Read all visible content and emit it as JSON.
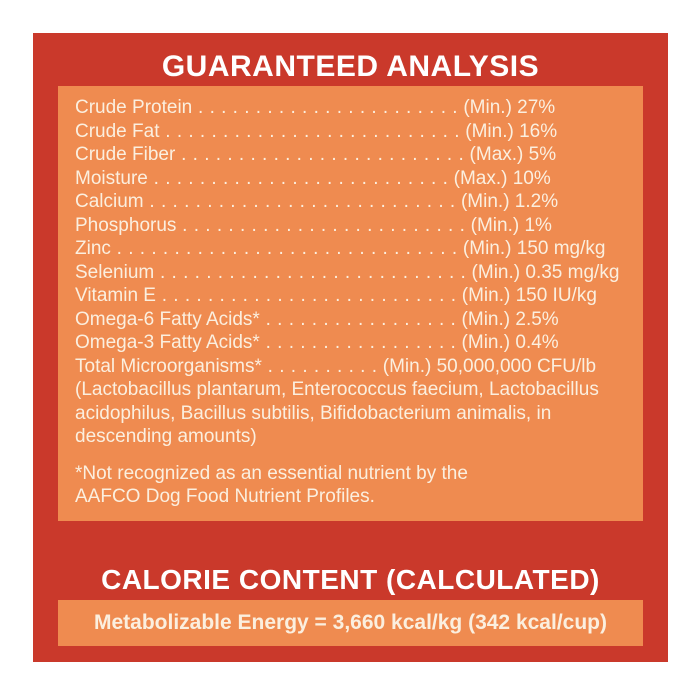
{
  "colors": {
    "page_background": "#ffffff",
    "label_red": "#ca392b",
    "panel_orange": "#ef8b50",
    "body_text_cream": "#fbefdf",
    "heading_text_white": "#ffffff"
  },
  "guaranteed_analysis": {
    "title": "GUARANTEED ANALYSIS",
    "rows": [
      {
        "name": "Crude Protein",
        "dots": " . . . . . . . . . . . . . . . . . . . . . . .",
        "value": " (Min.) 27%"
      },
      {
        "name": "Crude Fat",
        "dots": " . . . . . . . . . . . . . . . . . . . . . . . . . .",
        "value": " (Min.) 16%"
      },
      {
        "name": "Crude Fiber",
        "dots": " . . . . . . . . . . . . . . . . . . . . . . . . .",
        "value": " (Max.) 5%"
      },
      {
        "name": "Moisture",
        "dots": " . . . . . . . . . . . . . . . . . . . . . . . . . .",
        "value": " (Max.) 10%"
      },
      {
        "name": "Calcium",
        "dots": " . . . . . . . . . . . . . . . . . . . . . . . . . . .",
        "value": " (Min.) 1.2%"
      },
      {
        "name": "Phosphorus",
        "dots": " . . . . . . . . . . . . . . . . . . . . . . . . .",
        "value": " (Min.) 1%"
      },
      {
        "name": "Zinc",
        "dots": " . . . . . . . . . . . . . . . . . . . . . . . . . . . . . .",
        "value": " (Min.) 150 mg/kg"
      },
      {
        "name": "Selenium",
        "dots": " . . . . . . . . . . . . . . . . . . . . . . . . . . .",
        "value": " (Min.) 0.35 mg/kg"
      },
      {
        "name": "Vitamin E",
        "dots": " . . . . . . . . . . . . . . . . . . . . . . . . . .",
        "value": " (Min.) 150 IU/kg"
      },
      {
        "name": "Omega-6 Fatty Acids*",
        "dots": " . . . . . . . . . . . . . . . . .",
        "value": " (Min.) 2.5%"
      },
      {
        "name": "Omega-3 Fatty Acids*",
        "dots": " . . . . . . . . . . . . . . . . .",
        "value": " (Min.) 0.4%"
      },
      {
        "name": "Total Microorganisms*",
        "dots": " . . . . . . . . . .",
        "value": " (Min.) 50,000,000 CFU/lb"
      }
    ],
    "microorganisms_detail": "(Lactobacillus plantarum, Enterococcus faecium, Lactobacillus\nacidophilus, Bacillus subtilis, Bifidobacterium animalis, in\ndescending amounts)",
    "footnote": "*Not recognized as an essential nutrient by the\nAAFCO Dog Food Nutrient Profiles."
  },
  "calorie_content": {
    "title": "CALORIE CONTENT (CALCULATED)",
    "statement": "Metabolizable Energy = 3,660 kcal/kg (342 kcal/cup)"
  }
}
